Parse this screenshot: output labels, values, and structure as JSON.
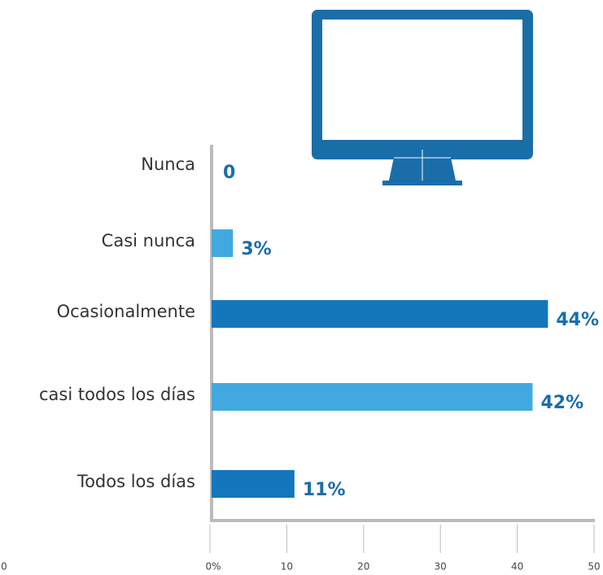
{
  "chart_data": {
    "type": "hbar",
    "categories": [
      "Nunca",
      "Casi nunca",
      "Ocasionalmente",
      "casi todos los días",
      "Todos los días"
    ],
    "values": [
      0,
      3,
      44,
      42,
      11
    ],
    "value_labels": [
      "0",
      "3%",
      "44%",
      "42%",
      "11%"
    ],
    "colors": [
      "#1476bb",
      "#42a9e0",
      "#1476bb",
      "#42a9e0",
      "#1476bb"
    ],
    "xlim": [
      0,
      50
    ],
    "xticks": [
      {
        "value": 0,
        "label": "0%"
      },
      10,
      20,
      30,
      40,
      50
    ],
    "annotation": "0"
  }
}
